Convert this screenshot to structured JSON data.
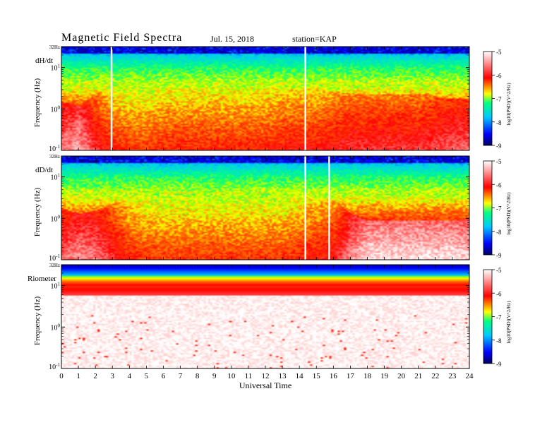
{
  "header": {
    "title": "Magnetic Field Spectra",
    "date": "Jul. 15, 2018",
    "station": "station=KAP"
  },
  "colors": {
    "scale": [
      "#000060",
      "#0000ff",
      "#00c8ff",
      "#00ff80",
      "#ffff00",
      "#ff0000",
      "#ffffff"
    ]
  },
  "chart_data": [
    {
      "type": "heatmap",
      "name": "dH/dt",
      "panel_label": "dH/dt",
      "ylabel": "Frequency (Hz)",
      "yticks": [
        "32Hz",
        "10^1",
        "10^0",
        "10^-1"
      ],
      "ylim_hz": [
        0.1,
        32
      ],
      "x_range_ut": [
        0,
        24
      ],
      "background_level_by_hour": [
        -6.3,
        -6.1,
        -6.6,
        -6.9,
        -7.0,
        -7.0,
        -6.9,
        -6.9,
        -6.9,
        -6.9,
        -6.9,
        -6.9,
        -6.9,
        -6.8,
        -6.8,
        -6.8,
        -6.7,
        -6.6,
        -6.6,
        -6.6,
        -6.6,
        -6.6,
        -6.5,
        -6.4,
        -6.4
      ],
      "spikes_ut": [
        2.95,
        14.35
      ],
      "colorbar": {
        "label": "log10(PSD)(V^2/Hz)",
        "ticks": [
          "-5",
          "-6",
          "-7",
          "-8",
          "-9"
        ],
        "range": [
          -9,
          -5
        ]
      }
    },
    {
      "type": "heatmap",
      "name": "dD/dt",
      "panel_label": "dD/dt",
      "ylabel": "Frequency (Hz)",
      "yticks": [
        "32Hz",
        "10^1",
        "10^0",
        "10^-1"
      ],
      "ylim_hz": [
        0.1,
        32
      ],
      "x_range_ut": [
        0,
        24
      ],
      "background_level_by_hour": [
        -6.4,
        -6.2,
        -6.3,
        -6.6,
        -6.9,
        -7.0,
        -7.0,
        -7.0,
        -7.0,
        -7.0,
        -7.0,
        -7.0,
        -7.0,
        -7.0,
        -6.9,
        -6.8,
        -6.7,
        -6.2,
        -5.9,
        -5.9,
        -5.9,
        -5.9,
        -5.9,
        -5.9,
        -6.0
      ],
      "spikes_ut": [
        14.35,
        15.75
      ],
      "colorbar": {
        "label": "log10(PSD)(V^2/Hz)",
        "ticks": [
          "-5",
          "-6",
          "-7",
          "-8",
          "-9"
        ],
        "range": [
          -9,
          -5
        ]
      }
    },
    {
      "type": "heatmap",
      "name": "Riometer",
      "panel_label": "Riometer",
      "ylabel": "Frequency (Hz)",
      "yticks": [
        "32Hz",
        "10^1",
        "10^0",
        "10^-1"
      ],
      "ylim_hz": [
        0.1,
        32
      ],
      "x_range_ut": [
        0,
        24
      ],
      "background_level_by_hour": [
        -5.8,
        -5.8,
        -5.8,
        -5.8,
        -5.8,
        -5.8,
        -5.8,
        -5.8,
        -5.8,
        -5.8,
        -5.8,
        -5.8,
        -5.8,
        -5.8,
        -5.8,
        -5.8,
        -5.8,
        -5.8,
        -5.8,
        -5.8,
        -5.8,
        -5.8,
        -5.8,
        -5.8,
        -5.8
      ],
      "spikes_ut": [],
      "colorbar": {
        "label": "log10(PSD)(V^2/Hz)",
        "ticks": [
          "-5",
          "-6",
          "-7",
          "-8",
          "-9"
        ],
        "range": [
          -9,
          -5
        ]
      }
    }
  ],
  "xaxis": {
    "label": "Universal Time",
    "ticks": [
      "0",
      "1",
      "2",
      "3",
      "4",
      "5",
      "6",
      "7",
      "8",
      "9",
      "10",
      "11",
      "12",
      "13",
      "14",
      "15",
      "16",
      "17",
      "18",
      "19",
      "20",
      "21",
      "22",
      "23",
      "24"
    ]
  }
}
